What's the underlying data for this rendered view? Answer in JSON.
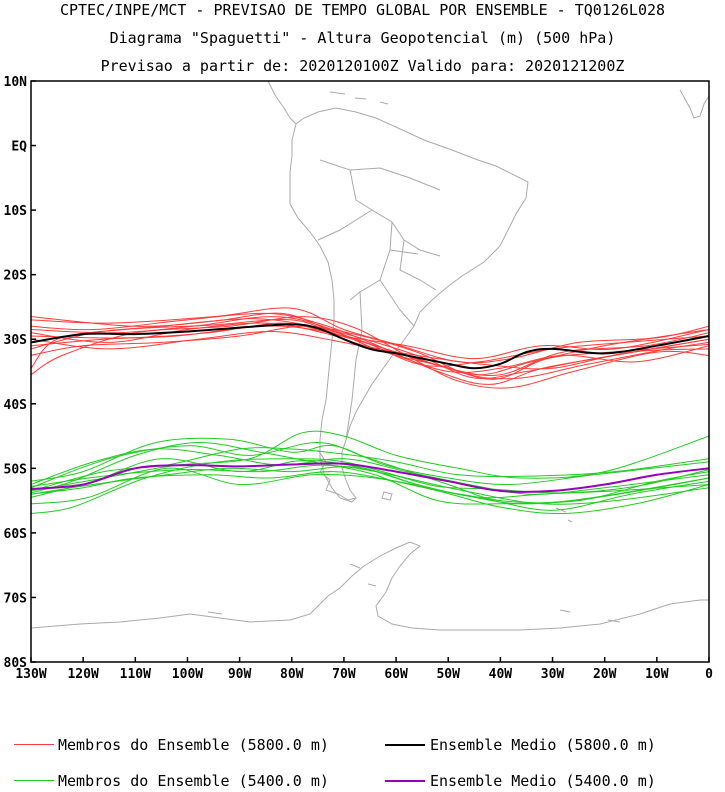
{
  "title": {
    "line1": "CPTEC/INPE/MCT - PREVISAO DE TEMPO GLOBAL POR ENSEMBLE - TQ0126L028",
    "line2": "Diagrama \"Spaguetti\" - Altura Geopotencial (m) (500 hPa)",
    "line3": "Previsao a partir de: 2020120100Z  Valido para: 2020121200Z"
  },
  "axes": {
    "lat_ticks": [
      "10N",
      "EQ",
      "10S",
      "20S",
      "30S",
      "40S",
      "50S",
      "60S",
      "70S",
      "80S"
    ],
    "lon_ticks": [
      "130W",
      "120W",
      "110W",
      "100W",
      "90W",
      "80W",
      "70W",
      "60W",
      "50W",
      "40W",
      "30W",
      "20W",
      "10W",
      "0"
    ],
    "lat_range": [
      10,
      -80
    ],
    "lon_range": [
      -130,
      0
    ]
  },
  "legend": {
    "red_members": "Membros do Ensemble (5800.0 m)",
    "black_mean": "Ensemble Medio (5800.0 m)",
    "green_members": "Membros do Ensemble (5400.0 m)",
    "purple_mean": "Ensemble Medio (5400.0 m)"
  },
  "colors": {
    "red_members": "#ff3b3b",
    "black_mean": "#000000",
    "green_members": "#22cc22",
    "purple_mean": "#9900bb",
    "coastline": "#aaaaaa"
  },
  "chart_data": {
    "type": "line",
    "x_units": "longitude (deg, negative = W)",
    "y_units": "latitude (deg, negative = S)",
    "series": [
      {
        "name": "Ensemble Medio (5800.0 m)",
        "points": [
          [
            -130,
            -30.5
          ],
          [
            -120,
            -29.2
          ],
          [
            -110,
            -29.2
          ],
          [
            -100,
            -28.8
          ],
          [
            -90,
            -28.2
          ],
          [
            -80,
            -27.7
          ],
          [
            -75,
            -28.3
          ],
          [
            -70,
            -30.0
          ],
          [
            -65,
            -31.5
          ],
          [
            -60,
            -32.2
          ],
          [
            -55,
            -33.0
          ],
          [
            -50,
            -33.8
          ],
          [
            -45,
            -34.5
          ],
          [
            -40,
            -33.8
          ],
          [
            -35,
            -32.0
          ],
          [
            -30,
            -31.5
          ],
          [
            -20,
            -32.2
          ],
          [
            -10,
            -31.0
          ],
          [
            0,
            -29.5
          ]
        ]
      },
      {
        "name": "Ensemble Medio (5400.0 m)",
        "points": [
          [
            -130,
            -53.2
          ],
          [
            -120,
            -52.5
          ],
          [
            -110,
            -50.0
          ],
          [
            -100,
            -49.5
          ],
          [
            -90,
            -49.7
          ],
          [
            -80,
            -49.4
          ],
          [
            -70,
            -49.3
          ],
          [
            -60,
            -50.5
          ],
          [
            -50,
            -52.0
          ],
          [
            -40,
            -53.5
          ],
          [
            -30,
            -53.5
          ],
          [
            -20,
            -52.5
          ],
          [
            -10,
            -51.0
          ],
          [
            0,
            -50.0
          ]
        ]
      }
    ],
    "members_5800": [
      [
        [
          -130,
          -27.0
        ],
        [
          -115,
          -27.5
        ],
        [
          -95,
          -26.5
        ],
        [
          -80,
          -25.2
        ],
        [
          -70,
          -28.5
        ],
        [
          -60,
          -30.8
        ],
        [
          -48,
          -33.5
        ],
        [
          -38,
          -33.0
        ],
        [
          -25,
          -30.5
        ],
        [
          -10,
          -29.8
        ],
        [
          0,
          -28.0
        ]
      ],
      [
        [
          -130,
          -26.5
        ],
        [
          -110,
          -28.0
        ],
        [
          -95,
          -27.2
        ],
        [
          -82,
          -26.0
        ],
        [
          -72,
          -28.8
        ],
        [
          -62,
          -31.5
        ],
        [
          -50,
          -34.5
        ],
        [
          -40,
          -35.5
        ],
        [
          -28,
          -32.0
        ],
        [
          -12,
          -31.0
        ],
        [
          0,
          -29.0
        ]
      ],
      [
        [
          -130,
          -29.0
        ],
        [
          -115,
          -30.5
        ],
        [
          -100,
          -28.5
        ],
        [
          -85,
          -27.5
        ],
        [
          -74,
          -29.0
        ],
        [
          -65,
          -31.2
        ],
        [
          -52,
          -33.0
        ],
        [
          -42,
          -34.0
        ],
        [
          -30,
          -34.5
        ],
        [
          -15,
          -32.0
        ],
        [
          0,
          -31.5
        ]
      ],
      [
        [
          -130,
          -31.5
        ],
        [
          -118,
          -29.0
        ],
        [
          -105,
          -28.0
        ],
        [
          -88,
          -26.8
        ],
        [
          -76,
          -28.0
        ],
        [
          -66,
          -30.0
        ],
        [
          -55,
          -32.8
        ],
        [
          -45,
          -36.0
        ],
        [
          -35,
          -35.0
        ],
        [
          -22,
          -33.0
        ],
        [
          0,
          -30.0
        ]
      ],
      [
        [
          -130,
          -34.5
        ],
        [
          -125,
          -30.0
        ],
        [
          -112,
          -28.5
        ],
        [
          -95,
          -27.8
        ],
        [
          -80,
          -27.0
        ],
        [
          -70,
          -29.5
        ],
        [
          -58,
          -31.0
        ],
        [
          -45,
          -33.0
        ],
        [
          -32,
          -31.0
        ],
        [
          -18,
          -31.5
        ],
        [
          0,
          -28.5
        ]
      ],
      [
        [
          -130,
          -32.5
        ],
        [
          -120,
          -31.0
        ],
        [
          -105,
          -30.5
        ],
        [
          -90,
          -29.5
        ],
        [
          -78,
          -28.0
        ],
        [
          -68,
          -29.2
        ],
        [
          -56,
          -32.0
        ],
        [
          -46,
          -35.5
        ],
        [
          -36,
          -36.0
        ],
        [
          -24,
          -34.0
        ],
        [
          -8,
          -31.5
        ],
        [
          0,
          -30.5
        ]
      ],
      [
        [
          -130,
          -28.0
        ],
        [
          -118,
          -28.5
        ],
        [
          -100,
          -27.0
        ],
        [
          -85,
          -26.0
        ],
        [
          -75,
          -27.5
        ],
        [
          -65,
          -30.5
        ],
        [
          -52,
          -35.0
        ],
        [
          -42,
          -37.0
        ],
        [
          -32,
          -34.5
        ],
        [
          -18,
          -32.5
        ],
        [
          0,
          -30.0
        ]
      ],
      [
        [
          -130,
          -30.0
        ],
        [
          -115,
          -31.5
        ],
        [
          -98,
          -30.0
        ],
        [
          -84,
          -28.8
        ],
        [
          -72,
          -30.2
        ],
        [
          -62,
          -32.0
        ],
        [
          -50,
          -35.0
        ],
        [
          -40,
          -34.5
        ],
        [
          -28,
          -32.5
        ],
        [
          -14,
          -33.5
        ],
        [
          0,
          -31.0
        ]
      ],
      [
        [
          -130,
          -35.5
        ],
        [
          -124,
          -32.5
        ],
        [
          -110,
          -29.0
        ],
        [
          -92,
          -28.0
        ],
        [
          -78,
          -26.5
        ],
        [
          -68,
          -28.2
        ],
        [
          -58,
          -32.5
        ],
        [
          -48,
          -36.5
        ],
        [
          -38,
          -37.5
        ],
        [
          -26,
          -35.0
        ],
        [
          -10,
          -32.0
        ],
        [
          0,
          -32.5
        ]
      ],
      [
        [
          -130,
          -29.5
        ],
        [
          -112,
          -29.8
        ],
        [
          -96,
          -29.0
        ],
        [
          -82,
          -27.5
        ],
        [
          -73,
          -29.0
        ],
        [
          -64,
          -31.0
        ],
        [
          -54,
          -33.5
        ],
        [
          -44,
          -35.5
        ],
        [
          -34,
          -33.5
        ],
        [
          -20,
          -31.0
        ],
        [
          0,
          -28.5
        ]
      ],
      [
        [
          -130,
          -31.0
        ],
        [
          -116,
          -30.0
        ],
        [
          -102,
          -29.5
        ],
        [
          -86,
          -28.0
        ],
        [
          -76,
          -28.5
        ],
        [
          -66,
          -30.5
        ],
        [
          -55,
          -34.0
        ],
        [
          -44,
          -33.5
        ],
        [
          -30,
          -31.5
        ],
        [
          -16,
          -30.5
        ],
        [
          0,
          -29.5
        ]
      ],
      [
        [
          -130,
          -28.5
        ],
        [
          -114,
          -29.0
        ],
        [
          -99,
          -28.0
        ],
        [
          -84,
          -26.5
        ],
        [
          -74,
          -28.0
        ],
        [
          -63,
          -31.8
        ],
        [
          -51,
          -34.2
        ],
        [
          -41,
          -36.2
        ],
        [
          -31,
          -33.0
        ],
        [
          -19,
          -32.0
        ],
        [
          0,
          -30.8
        ]
      ]
    ],
    "members_5400": [
      [
        [
          -130,
          -53.0
        ],
        [
          -115,
          -48.5
        ],
        [
          -100,
          -46.5
        ],
        [
          -88,
          -48.0
        ],
        [
          -75,
          -46.0
        ],
        [
          -65,
          -48.5
        ],
        [
          -50,
          -52.5
        ],
        [
          -40,
          -55.0
        ],
        [
          -25,
          -55.0
        ],
        [
          -10,
          -52.0
        ],
        [
          0,
          -50.5
        ]
      ],
      [
        [
          -130,
          -54.5
        ],
        [
          -118,
          -52.0
        ],
        [
          -105,
          -48.5
        ],
        [
          -90,
          -50.5
        ],
        [
          -78,
          -48.8
        ],
        [
          -66,
          -50.0
        ],
        [
          -54,
          -53.0
        ],
        [
          -44,
          -54.5
        ],
        [
          -30,
          -56.5
        ],
        [
          -15,
          -54.0
        ],
        [
          0,
          -52.0
        ]
      ],
      [
        [
          -130,
          -57.0
        ],
        [
          -122,
          -56.0
        ],
        [
          -108,
          -51.5
        ],
        [
          -94,
          -49.0
        ],
        [
          -80,
          -48.5
        ],
        [
          -70,
          -49.0
        ],
        [
          -58,
          -51.5
        ],
        [
          -45,
          -53.8
        ],
        [
          -32,
          -55.5
        ],
        [
          -18,
          -55.0
        ],
        [
          0,
          -53.0
        ]
      ],
      [
        [
          -130,
          -52.0
        ],
        [
          -120,
          -50.5
        ],
        [
          -106,
          -46.0
        ],
        [
          -92,
          -45.5
        ],
        [
          -80,
          -47.5
        ],
        [
          -72,
          -46.5
        ],
        [
          -62,
          -49.5
        ],
        [
          -50,
          -51.5
        ],
        [
          -38,
          -52.5
        ],
        [
          -22,
          -51.0
        ],
        [
          0,
          -49.0
        ]
      ],
      [
        [
          -130,
          -55.5
        ],
        [
          -119,
          -54.5
        ],
        [
          -104,
          -50.0
        ],
        [
          -90,
          -52.5
        ],
        [
          -76,
          -51.0
        ],
        [
          -64,
          -51.5
        ],
        [
          -52,
          -53.5
        ],
        [
          -40,
          -56.0
        ],
        [
          -28,
          -57.0
        ],
        [
          -14,
          -55.5
        ],
        [
          0,
          -52.5
        ]
      ],
      [
        [
          -130,
          -53.5
        ],
        [
          -116,
          -51.5
        ],
        [
          -102,
          -49.5
        ],
        [
          -88,
          -48.5
        ],
        [
          -78,
          -44.5
        ],
        [
          -70,
          -45.0
        ],
        [
          -60,
          -48.0
        ],
        [
          -48,
          -50.0
        ],
        [
          -36,
          -51.5
        ],
        [
          -20,
          -50.5
        ],
        [
          0,
          -45.0
        ]
      ],
      [
        [
          -130,
          -52.5
        ],
        [
          -118,
          -49.0
        ],
        [
          -106,
          -47.0
        ],
        [
          -94,
          -48.0
        ],
        [
          -82,
          -49.5
        ],
        [
          -70,
          -48.5
        ],
        [
          -58,
          -50.5
        ],
        [
          -46,
          -52.5
        ],
        [
          -34,
          -54.0
        ],
        [
          -20,
          -53.0
        ],
        [
          0,
          -51.0
        ]
      ],
      [
        [
          -130,
          -54.0
        ],
        [
          -120,
          -53.0
        ],
        [
          -110,
          -51.5
        ],
        [
          -96,
          -51.0
        ],
        [
          -84,
          -51.5
        ],
        [
          -72,
          -50.5
        ],
        [
          -60,
          -52.0
        ],
        [
          -48,
          -54.0
        ],
        [
          -36,
          -55.5
        ],
        [
          -22,
          -54.5
        ],
        [
          0,
          -51.5
        ]
      ],
      [
        [
          -130,
          -53.5
        ],
        [
          -116,
          -50.5
        ],
        [
          -104,
          -49.5
        ],
        [
          -90,
          -47.0
        ],
        [
          -80,
          -47.0
        ],
        [
          -70,
          -47.8
        ],
        [
          -60,
          -49.0
        ],
        [
          -48,
          -51.0
        ],
        [
          -34,
          -51.2
        ],
        [
          -18,
          -50.5
        ],
        [
          0,
          -48.5
        ]
      ],
      [
        [
          -130,
          -52.8
        ],
        [
          -114,
          -51.0
        ],
        [
          -100,
          -50.2
        ],
        [
          -86,
          -50.5
        ],
        [
          -74,
          -49.5
        ],
        [
          -62,
          -50.8
        ],
        [
          -52,
          -52.8
        ],
        [
          -42,
          -53.2
        ],
        [
          -28,
          -53.8
        ],
        [
          -14,
          -52.8
        ],
        [
          0,
          -50.2
        ]
      ],
      [
        [
          -130,
          -53.8
        ],
        [
          -122,
          -52.0
        ],
        [
          -110,
          -48.0
        ],
        [
          -98,
          -46.0
        ],
        [
          -86,
          -47.5
        ],
        [
          -76,
          -49.0
        ],
        [
          -64,
          -51.0
        ],
        [
          -52,
          -55.0
        ],
        [
          -40,
          -55.5
        ],
        [
          -26,
          -55.0
        ],
        [
          -10,
          -53.0
        ],
        [
          0,
          -51.5
        ]
      ],
      [
        [
          -130,
          -54.0
        ],
        [
          -118,
          -52.5
        ],
        [
          -104,
          -51.0
        ],
        [
          -92,
          -50.0
        ],
        [
          -80,
          -50.5
        ],
        [
          -68,
          -49.8
        ],
        [
          -56,
          -52.5
        ],
        [
          -44,
          -54.5
        ],
        [
          -32,
          -54.0
        ],
        [
          -18,
          -53.5
        ],
        [
          0,
          -52.5
        ]
      ]
    ]
  }
}
